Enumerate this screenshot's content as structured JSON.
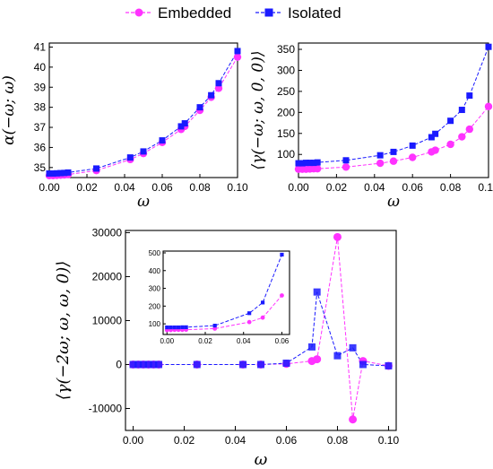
{
  "legend": {
    "items": [
      {
        "label": "Embedded",
        "color": "#ff33ff",
        "marker": "circle"
      },
      {
        "label": "Isolated",
        "color": "#1a1aff",
        "marker": "square"
      }
    ]
  },
  "chart_data": [
    {
      "id": "top-left",
      "type": "line",
      "xlabel": "ω",
      "ylabel": "α(−ω; ω)",
      "xlim": [
        0.0,
        0.1
      ],
      "ylim": [
        34.5,
        41.2
      ],
      "xticks": [
        0.0,
        0.02,
        0.04,
        0.06,
        0.08,
        0.1
      ],
      "xticklabels": [
        "0.00",
        "0.02",
        "0.04",
        "0.06",
        "0.08",
        "0.10"
      ],
      "yticks": [
        35,
        36,
        37,
        38,
        39,
        40,
        41
      ],
      "yticklabels": [
        "35",
        "36",
        "37",
        "38",
        "39",
        "40",
        "41"
      ],
      "series": [
        {
          "name": "Embedded",
          "x": [
            0.0,
            0.002,
            0.004,
            0.006,
            0.008,
            0.01,
            0.025,
            0.043,
            0.05,
            0.06,
            0.07,
            0.072,
            0.08,
            0.086,
            0.09,
            0.1
          ],
          "y": [
            34.6,
            34.6,
            34.61,
            34.62,
            34.63,
            34.65,
            34.85,
            35.4,
            35.7,
            36.25,
            36.9,
            37.05,
            37.85,
            38.5,
            38.95,
            40.5
          ]
        },
        {
          "name": "Isolated",
          "x": [
            0.0,
            0.002,
            0.004,
            0.006,
            0.008,
            0.01,
            0.025,
            0.043,
            0.05,
            0.06,
            0.07,
            0.072,
            0.08,
            0.086,
            0.09,
            0.1
          ],
          "y": [
            34.7,
            34.7,
            34.71,
            34.72,
            34.73,
            34.75,
            34.95,
            35.5,
            35.8,
            36.35,
            37.05,
            37.2,
            38.0,
            38.6,
            39.2,
            40.8
          ]
        }
      ]
    },
    {
      "id": "top-right",
      "type": "line",
      "xlabel": "ω",
      "ylabel": "⟨γ(−ω; ω, 0, 0)⟩",
      "xlim": [
        0.0,
        0.1
      ],
      "ylim": [
        45,
        365
      ],
      "xticks": [
        0.0,
        0.02,
        0.04,
        0.06,
        0.08,
        0.1
      ],
      "xticklabels": [
        "0.00",
        "0.02",
        "0.04",
        "0.06",
        "0.08",
        "0.10"
      ],
      "yticks": [
        100,
        150,
        200,
        250,
        300,
        350
      ],
      "yticklabels": [
        "100",
        "150",
        "200",
        "250",
        "300",
        "350"
      ],
      "series": [
        {
          "name": "Embedded",
          "x": [
            0.0,
            0.002,
            0.004,
            0.006,
            0.008,
            0.01,
            0.025,
            0.043,
            0.05,
            0.06,
            0.07,
            0.072,
            0.08,
            0.086,
            0.09,
            0.1
          ],
          "y": [
            65,
            65,
            65,
            65.5,
            66,
            66,
            70,
            79,
            84,
            93,
            106,
            110,
            124,
            142,
            160,
            214
          ]
        },
        {
          "name": "Isolated",
          "x": [
            0.0,
            0.002,
            0.004,
            0.006,
            0.008,
            0.01,
            0.025,
            0.043,
            0.05,
            0.06,
            0.07,
            0.072,
            0.08,
            0.086,
            0.09,
            0.1
          ],
          "y": [
            79,
            79,
            80,
            80,
            80,
            81,
            86,
            98,
            106,
            121,
            141,
            149,
            180,
            206,
            240,
            356
          ]
        }
      ]
    },
    {
      "id": "bottom",
      "type": "line",
      "xlabel": "ω",
      "ylabel": "⟨γ(−2ω; ω, ω, 0)⟩",
      "xlim": [
        -0.003,
        0.103
      ],
      "ylim": [
        -15000,
        30500
      ],
      "xticks": [
        0.0,
        0.02,
        0.04,
        0.06,
        0.08,
        0.1
      ],
      "xticklabels": [
        "0.00",
        "0.02",
        "0.04",
        "0.06",
        "0.08",
        "0.10"
      ],
      "yticks": [
        -10000,
        0,
        10000,
        20000,
        30000
      ],
      "yticklabels": [
        "-10000",
        "0",
        "10000",
        "20000",
        "30000"
      ],
      "series": [
        {
          "name": "Embedded",
          "x": [
            0.0,
            0.002,
            0.004,
            0.006,
            0.008,
            0.01,
            0.025,
            0.043,
            0.05,
            0.06,
            0.07,
            0.072,
            0.08,
            0.086,
            0.09,
            0.1
          ],
          "y": [
            0,
            0,
            0,
            0,
            0,
            0,
            0,
            0,
            0,
            150,
            800,
            1200,
            29000,
            -12500,
            800,
            -300
          ]
        },
        {
          "name": "Isolated",
          "x": [
            0.0,
            0.002,
            0.004,
            0.006,
            0.008,
            0.01,
            0.025,
            0.043,
            0.05,
            0.06,
            0.07,
            0.072,
            0.08,
            0.086,
            0.09,
            0.1
          ],
          "y": [
            0,
            0,
            0,
            0,
            0,
            0,
            0,
            0,
            0,
            300,
            4000,
            16500,
            2000,
            3800,
            0,
            -300
          ]
        }
      ]
    },
    {
      "id": "bottom-inset",
      "type": "line",
      "xlabel": "",
      "ylabel": "",
      "xlim": [
        -0.002,
        0.064
      ],
      "ylim": [
        40,
        510
      ],
      "xticks": [
        0.0,
        0.02,
        0.04,
        0.06
      ],
      "xticklabels": [
        "0.00",
        "0.02",
        "0.04",
        "0.06"
      ],
      "yticks": [
        100,
        200,
        300,
        400,
        500
      ],
      "yticklabels": [
        "100",
        "200",
        "300",
        "400",
        "500"
      ],
      "series": [
        {
          "name": "Embedded",
          "x": [
            0.0,
            0.002,
            0.004,
            0.006,
            0.008,
            0.01,
            0.025,
            0.043,
            0.05,
            0.06
          ],
          "y": [
            65,
            65,
            66,
            66,
            66,
            67,
            73,
            110,
            135,
            260
          ]
        },
        {
          "name": "Isolated",
          "x": [
            0.0,
            0.002,
            0.004,
            0.006,
            0.008,
            0.01,
            0.025,
            0.043,
            0.05,
            0.06
          ],
          "y": [
            80,
            80,
            80,
            80,
            81,
            81,
            90,
            160,
            220,
            490
          ]
        }
      ]
    }
  ]
}
